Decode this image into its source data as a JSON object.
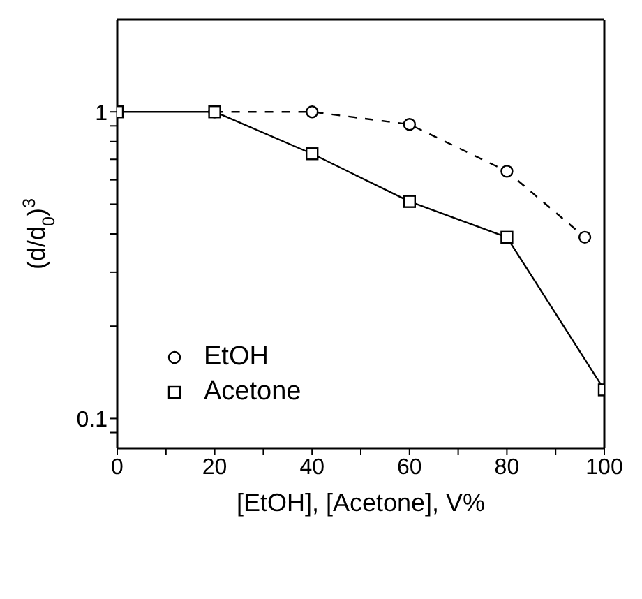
{
  "chart_data": {
    "type": "line",
    "xlabel": "[EtOH], [Acetone], V%",
    "ylabel": "(d/d$_{0}$)$^{3}$",
    "log": "y",
    "grid": false,
    "legend": "left",
    "xlim": [
      0,
      100
    ],
    "xticks": [
      0,
      {
        "value": 10,
        "label": null
      },
      20,
      {
        "value": 30,
        "label": null
      },
      40,
      {
        "value": 50,
        "label": null
      },
      60,
      {
        "value": 70,
        "label": null
      },
      80,
      {
        "value": 90,
        "label": null
      },
      100
    ],
    "ylim": [
      0.08,
      2
    ],
    "yticks": [
      {
        "value": 0.09,
        "label": null
      },
      0.1,
      {
        "value": 0.2,
        "label": null
      },
      {
        "value": 0.3,
        "label": null
      },
      {
        "value": 0.4,
        "label": null
      },
      {
        "value": 0.5,
        "label": null
      },
      {
        "value": 0.6,
        "label": null
      },
      {
        "value": 0.7,
        "label": null
      },
      {
        "value": 0.8,
        "label": null
      },
      {
        "value": 0.9,
        "label": null
      },
      1
    ],
    "series": [
      {
        "name": "EtOH",
        "color": "#000000",
        "marker": "circle",
        "line_style": "dashed",
        "x": [
          20,
          40,
          60,
          80,
          96
        ],
        "values": [
          1,
          1,
          0.91,
          0.64,
          0.39
        ]
      },
      {
        "name": "Acetone",
        "color": "#000000",
        "marker": "square",
        "line_style": "solid",
        "x": [
          0,
          20,
          40,
          60,
          80,
          100
        ],
        "values": [
          1,
          1,
          0.73,
          0.51,
          0.39,
          0.124
        ]
      }
    ]
  }
}
